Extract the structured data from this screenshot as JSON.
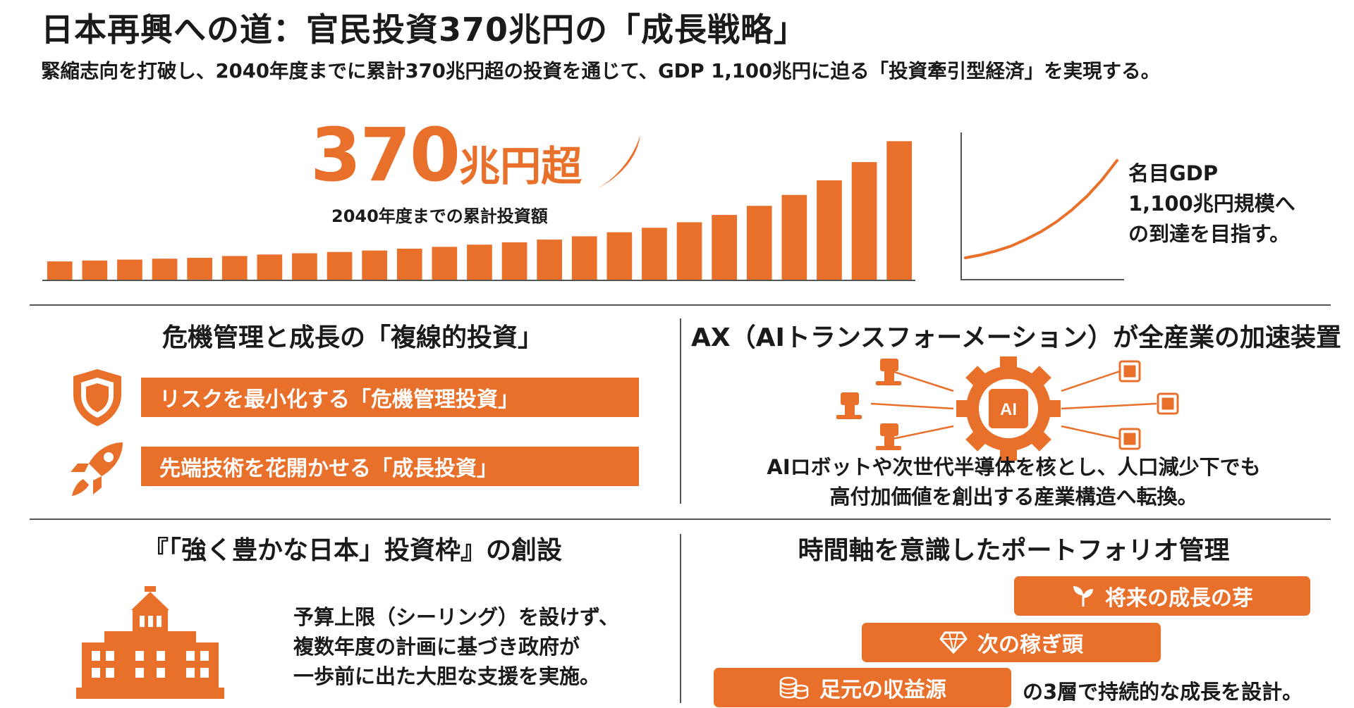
{
  "header": {
    "title": "日本再興への道：官民投資370兆円の「成長戦略」",
    "subtitle": "緊縮志向を打破し、2040年度までに累計370兆円超の投資を通じて、GDP 1,100兆円に迫る「投資牽引型経済」を実現する。"
  },
  "hero": {
    "figure_number": "370",
    "figure_unit": "兆円超",
    "caption": "2040年度までの累計投資額",
    "gdp_lines": [
      "名目GDP",
      "1,100兆円規模へ",
      "の到達を目指す。"
    ]
  },
  "chart_data": [
    {
      "type": "bar",
      "title": "",
      "xlabel": "",
      "ylabel": "",
      "values": [
        1.0,
        1.05,
        1.1,
        1.15,
        1.2,
        1.3,
        1.38,
        1.45,
        1.52,
        1.6,
        1.7,
        1.8,
        1.92,
        2.05,
        2.2,
        2.38,
        2.6,
        2.85,
        3.15,
        3.55,
        4.05,
        4.65,
        5.45,
        6.45,
        7.6
      ],
      "ylim": [
        0,
        8
      ],
      "grid": false,
      "color": "#e8702a"
    },
    {
      "type": "line",
      "title": "",
      "xlabel": "",
      "ylabel": "",
      "x": [
        0,
        1,
        2,
        3,
        4,
        5,
        6,
        7,
        8,
        9,
        10
      ],
      "y": [
        0.0,
        0.03,
        0.07,
        0.12,
        0.19,
        0.27,
        0.37,
        0.49,
        0.63,
        0.8,
        1.0
      ],
      "ylim": [
        0,
        1.1
      ],
      "grid": false,
      "color": "#e8702a"
    }
  ],
  "sections": {
    "dual": {
      "title": "危機管理と成長の「複線的投資」",
      "items": [
        {
          "icon": "shield-icon",
          "label": "リスクを最小化する「危機管理投資」"
        },
        {
          "icon": "rocket-icon",
          "label": "先端技術を花開かせる「成長投資」"
        }
      ]
    },
    "ax": {
      "title": "AX（AIトランスフォーメーション）が全産業の加速装置",
      "gear_label": "AI",
      "lines": [
        "AIロボットや次世代半導体を核とし、人口減少下でも",
        "高付加価値を創出する産業構造へ転換。"
      ]
    },
    "fund": {
      "title": "『「強く豊かな日本」投資枠』の創設",
      "lines": [
        "予算上限（シーリング）を設けず、",
        "複数年度の計画に基づき政府が",
        "一歩前に出た大胆な支援を実施。"
      ]
    },
    "portfolio": {
      "title": "時間軸を意識したポートフォリオ管理",
      "tiers": [
        {
          "icon": "sprout-icon",
          "label": "将来の成長の芽"
        },
        {
          "icon": "diamond-icon",
          "label": "次の稼ぎ頭"
        },
        {
          "icon": "coins-icon",
          "label": "足元の収益源"
        }
      ],
      "caption": "の3層で持続的な成長を設計。"
    }
  }
}
